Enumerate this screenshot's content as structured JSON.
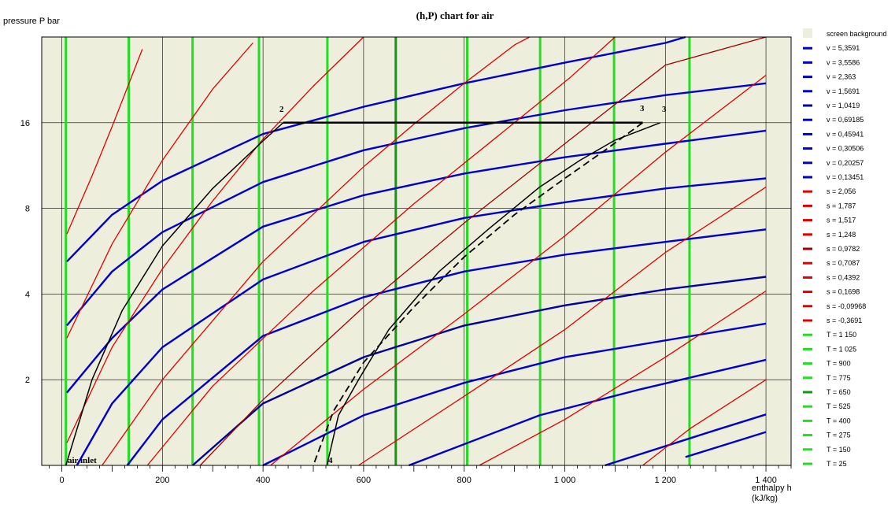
{
  "chart_data": {
    "type": "line",
    "title": "(h,P) chart for air",
    "ylabel": "pressure  P bar",
    "xlabel_line1": "enthalpy  h",
    "xlabel_line2": "(kJ/kg)",
    "x_ticks": [
      0,
      200,
      400,
      600,
      800,
      1000,
      1200,
      1400
    ],
    "x_tick_labels": [
      "0",
      "200",
      "400",
      "600",
      "800",
      "1 000",
      "1 200",
      "1 400"
    ],
    "y_ticks": [
      2,
      4,
      8,
      16
    ],
    "y_tick_labels": [
      "2",
      "4",
      "8",
      "16"
    ],
    "xlim": [
      -40,
      1450
    ],
    "ylim": [
      1,
      32
    ],
    "y_scale": "log",
    "grid": true,
    "legend_position": "right",
    "background_color": "#eeeedc",
    "legend": [
      {
        "label": "screen background",
        "color": "#eeeedc",
        "swatch": "box"
      },
      {
        "label": "v = 5,3591",
        "color": "#0000cc"
      },
      {
        "label": "v = 3,5586",
        "color": "#0000cc"
      },
      {
        "label": "v = 2,363",
        "color": "#0000cc"
      },
      {
        "label": "v = 1,5691",
        "color": "#0000cc"
      },
      {
        "label": "v = 1,0419",
        "color": "#00009a"
      },
      {
        "label": "v = 0,69185",
        "color": "#0000cc"
      },
      {
        "label": "v = 0,45941",
        "color": "#0000cc"
      },
      {
        "label": "v = 0,30506",
        "color": "#0000cc"
      },
      {
        "label": "v = 0,20257",
        "color": "#0000cc"
      },
      {
        "label": "v = 0,13451",
        "color": "#0000cc"
      },
      {
        "label": "s = 2,056",
        "color": "#e00000"
      },
      {
        "label": "s = 1,787",
        "color": "#e00000"
      },
      {
        "label": "s = 1,517",
        "color": "#e00000"
      },
      {
        "label": "s = 1,248",
        "color": "#e00000"
      },
      {
        "label": "s = 0,9782",
        "color": "#a00000"
      },
      {
        "label": "s = 0,7087",
        "color": "#e00000"
      },
      {
        "label": "s = 0,4392",
        "color": "#e00000"
      },
      {
        "label": "s = 0,1698",
        "color": "#e00000"
      },
      {
        "label": "s = -0,09968",
        "color": "#e00000"
      },
      {
        "label": "s = -0,3691",
        "color": "#e00000"
      },
      {
        "label": "T = 1 150",
        "color": "#22dd22"
      },
      {
        "label": "T = 1 025",
        "color": "#22dd22"
      },
      {
        "label": "T = 900",
        "color": "#22dd22"
      },
      {
        "label": "T = 775",
        "color": "#22dd22"
      },
      {
        "label": "T = 650",
        "color": "#119911"
      },
      {
        "label": "T = 525",
        "color": "#22dd22"
      },
      {
        "label": "T = 400",
        "color": "#22dd22"
      },
      {
        "label": "T = 275",
        "color": "#22dd22"
      },
      {
        "label": "T = 150",
        "color": "#22dd22"
      },
      {
        "label": "T = 25",
        "color": "#22dd22"
      }
    ],
    "isotherms": [
      {
        "name": "T = 1 150",
        "h": 1248,
        "color": "#22dd22"
      },
      {
        "name": "T = 1 025",
        "h": 1098,
        "color": "#22dd22"
      },
      {
        "name": "T = 900",
        "h": 951,
        "color": "#22dd22"
      },
      {
        "name": "T = 775",
        "h": 806,
        "color": "#22dd22"
      },
      {
        "name": "T = 650",
        "h": 664,
        "color": "#119911"
      },
      {
        "name": "T = 525",
        "h": 528,
        "color": "#22dd22"
      },
      {
        "name": "T = 400",
        "h": 392,
        "color": "#22dd22"
      },
      {
        "name": "T = 275",
        "h": 260,
        "color": "#22dd22"
      },
      {
        "name": "T = 150",
        "h": 133,
        "color": "#22dd22"
      },
      {
        "name": "T = 25",
        "h": 8,
        "color": "#22dd22"
      }
    ],
    "isochores": [
      {
        "name": "v = 5,3591",
        "points": [
          [
            1240,
            1.07
          ],
          [
            1400,
            1.31
          ]
        ],
        "color": "#0000cc"
      },
      {
        "name": "v = 3,5586",
        "points": [
          [
            1080,
            1.0
          ],
          [
            1300,
            1.33
          ],
          [
            1400,
            1.51
          ]
        ],
        "color": "#0000cc"
      },
      {
        "name": "v = 2,363",
        "points": [
          [
            690,
            1.0
          ],
          [
            950,
            1.5
          ],
          [
            1150,
            1.85
          ],
          [
            1400,
            2.35
          ]
        ],
        "color": "#0000cc"
      },
      {
        "name": "v = 1,5691",
        "points": [
          [
            400,
            1.0
          ],
          [
            600,
            1.5
          ],
          [
            800,
            1.95
          ],
          [
            1000,
            2.4
          ],
          [
            1400,
            3.15
          ]
        ],
        "color": "#0000cc"
      },
      {
        "name": "v = 1,0419",
        "points": [
          [
            260,
            1.0
          ],
          [
            400,
            1.65
          ],
          [
            600,
            2.4
          ],
          [
            800,
            3.1
          ],
          [
            1000,
            3.65
          ],
          [
            1200,
            4.15
          ],
          [
            1400,
            4.6
          ]
        ],
        "color": "#00009a"
      },
      {
        "name": "v = 0,69185",
        "points": [
          [
            130,
            1.0
          ],
          [
            200,
            1.45
          ],
          [
            400,
            2.85
          ],
          [
            600,
            3.9
          ],
          [
            800,
            4.8
          ],
          [
            1000,
            5.5
          ],
          [
            1200,
            6.1
          ],
          [
            1400,
            6.75
          ]
        ],
        "color": "#0000cc"
      },
      {
        "name": "v = 0,45941",
        "points": [
          [
            30,
            1.0
          ],
          [
            100,
            1.65
          ],
          [
            200,
            2.6
          ],
          [
            400,
            4.5
          ],
          [
            600,
            6.1
          ],
          [
            800,
            7.4
          ],
          [
            1000,
            8.4
          ],
          [
            1200,
            9.4
          ],
          [
            1400,
            10.2
          ]
        ],
        "color": "#0000cc"
      },
      {
        "name": "v = 0,30506",
        "points": [
          [
            10,
            1.8
          ],
          [
            100,
            2.8
          ],
          [
            200,
            4.15
          ],
          [
            400,
            6.9
          ],
          [
            600,
            8.9
          ],
          [
            800,
            10.6
          ],
          [
            1000,
            12.1
          ],
          [
            1200,
            13.5
          ],
          [
            1400,
            15.0
          ]
        ],
        "color": "#0000cc"
      },
      {
        "name": "v = 0,20257",
        "points": [
          [
            10,
            3.1
          ],
          [
            100,
            4.8
          ],
          [
            200,
            6.6
          ],
          [
            400,
            9.9
          ],
          [
            600,
            12.8
          ],
          [
            800,
            15.3
          ],
          [
            1000,
            17.7
          ],
          [
            1200,
            20.0
          ],
          [
            1400,
            22.0
          ]
        ],
        "color": "#0000cc"
      },
      {
        "name": "v = 0,13451",
        "points": [
          [
            10,
            5.2
          ],
          [
            100,
            7.6
          ],
          [
            200,
            10.0
          ],
          [
            400,
            14.6
          ],
          [
            600,
            18.2
          ],
          [
            800,
            22.0
          ],
          [
            1000,
            26.0
          ],
          [
            1200,
            30.5
          ],
          [
            1240,
            32
          ]
        ],
        "color": "#0000cc"
      }
    ],
    "isentropes": [
      {
        "name": "s = 2,056",
        "points": [
          [
            1155,
            1.0
          ],
          [
            1250,
            1.35
          ],
          [
            1400,
            2.0
          ]
        ],
        "color": "#e00000"
      },
      {
        "name": "s = 1,787",
        "points": [
          [
            830,
            1.0
          ],
          [
            1000,
            1.45
          ],
          [
            1200,
            2.4
          ],
          [
            1400,
            4.1
          ]
        ],
        "color": "#e00000"
      },
      {
        "name": "s = 1,517",
        "points": [
          [
            590,
            1.0
          ],
          [
            800,
            1.75
          ],
          [
            1000,
            3.0
          ],
          [
            1200,
            5.6
          ],
          [
            1400,
            9.5
          ]
        ],
        "color": "#e00000"
      },
      {
        "name": "s = 1,248",
        "points": [
          [
            415,
            1.0
          ],
          [
            600,
            1.85
          ],
          [
            800,
            3.4
          ],
          [
            1000,
            6.4
          ],
          [
            1200,
            12.6
          ],
          [
            1400,
            23.5
          ]
        ],
        "color": "#e00000"
      },
      {
        "name": "s = 0,9782",
        "points": [
          [
            275,
            1.0
          ],
          [
            400,
            1.7
          ],
          [
            600,
            3.6
          ],
          [
            800,
            7.1
          ],
          [
            1000,
            13.5
          ],
          [
            1200,
            25.5
          ],
          [
            1400,
            32
          ]
        ],
        "color": "#a00000"
      },
      {
        "name": "s = 0,7087",
        "points": [
          [
            170,
            1.0
          ],
          [
            300,
            1.9
          ],
          [
            500,
            4.1
          ],
          [
            700,
            8.3
          ],
          [
            900,
            16.0
          ],
          [
            1010,
            23.0
          ],
          [
            1100,
            32
          ]
        ],
        "color": "#e00000"
      },
      {
        "name": "s = 0,4392",
        "points": [
          [
            80,
            1.0
          ],
          [
            200,
            2.0
          ],
          [
            400,
            5.2
          ],
          [
            600,
            11.2
          ],
          [
            700,
            15.8
          ],
          [
            800,
            22.0
          ],
          [
            900,
            30.0
          ],
          [
            930,
            32
          ]
        ],
        "color": "#e00000"
      },
      {
        "name": "s = 0,1698",
        "points": [
          [
            10,
            1.2
          ],
          [
            100,
            2.6
          ],
          [
            200,
            4.9
          ],
          [
            300,
            8.5
          ],
          [
            400,
            14.0
          ],
          [
            500,
            21.5
          ],
          [
            600,
            32
          ]
        ],
        "color": "#e00000"
      },
      {
        "name": "s = -0,09968",
        "points": [
          [
            10,
            2.8
          ],
          [
            100,
            6.0
          ],
          [
            200,
            11.8
          ],
          [
            300,
            21.0
          ],
          [
            380,
            30.5
          ]
        ],
        "color": "#e00000"
      },
      {
        "name": "s = -0,3691",
        "points": [
          [
            10,
            6.5
          ],
          [
            60,
            10.4
          ],
          [
            100,
            15.5
          ],
          [
            160,
            29.0
          ]
        ],
        "color": "#e00000"
      }
    ],
    "cycle_labels": {
      "p2": "2",
      "p3a": "3",
      "p3b": "3",
      "p4": "4",
      "air_inlet": "air inlet"
    },
    "cycle_paths": [
      {
        "name": "compression",
        "style": "solid",
        "width": 1.5,
        "points": [
          [
            8,
            1.0
          ],
          [
            60,
            2.0
          ],
          [
            120,
            3.5
          ],
          [
            200,
            5.9
          ],
          [
            300,
            9.4
          ],
          [
            400,
            13.8
          ],
          [
            440,
            16.0
          ]
        ]
      },
      {
        "name": "heat-addition",
        "style": "solid",
        "width": 2.5,
        "points": [
          [
            440,
            16.0
          ],
          [
            1155,
            16.0
          ]
        ]
      },
      {
        "name": "expansion-actual",
        "style": "solid",
        "width": 1.5,
        "points": [
          [
            1190,
            16.0
          ],
          [
            1100,
            13.9
          ],
          [
            1030,
            11.8
          ],
          [
            950,
            9.5
          ],
          [
            850,
            6.8
          ],
          [
            750,
            4.8
          ],
          [
            650,
            3.0
          ],
          [
            590,
            2.0
          ],
          [
            550,
            1.5
          ],
          [
            527,
            1.0
          ]
        ]
      },
      {
        "name": "expansion-ideal",
        "style": "dashed",
        "width": 1.8,
        "points": [
          [
            1155,
            16.0
          ],
          [
            1080,
            12.8
          ],
          [
            1000,
            10.2
          ],
          [
            900,
            7.6
          ],
          [
            800,
            5.4
          ],
          [
            700,
            3.6
          ],
          [
            600,
            2.3
          ],
          [
            540,
            1.55
          ],
          [
            500,
            1.0
          ]
        ]
      }
    ]
  }
}
